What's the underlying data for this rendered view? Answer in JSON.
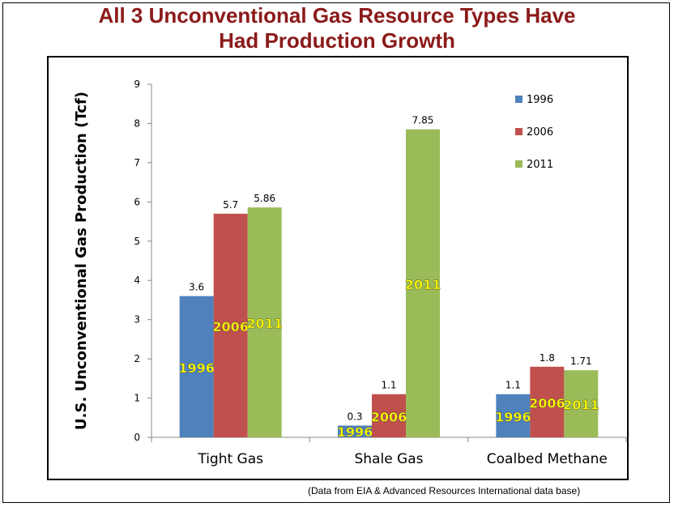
{
  "slide": {
    "title_line1": "All 3 Unconventional Gas Resource Types Have",
    "title_line2": "Had Production Growth",
    "source_note": "(Data from EIA & Advanced Resources International data base)"
  },
  "chart_data": {
    "type": "bar",
    "ylabel": "U.S. Unconventional Gas Production (Tcf)",
    "xlabel": "",
    "ylim": [
      0,
      9
    ],
    "yticks": [
      "0",
      "1",
      "2",
      "3",
      "4",
      "5",
      "6",
      "7",
      "8",
      "9"
    ],
    "grid": false,
    "legend": "top-right",
    "categories": [
      "Tight Gas",
      "Shale Gas",
      "Coalbed Methane"
    ],
    "series": [
      {
        "name": "1996",
        "color": "#4f81bd",
        "values": [
          3.6,
          0.3,
          1.1
        ],
        "labels": [
          "3.6",
          "0.3",
          "1.1"
        ]
      },
      {
        "name": "2006",
        "color": "#c0504d",
        "values": [
          5.7,
          1.1,
          1.8
        ],
        "labels": [
          "5.7",
          "1.1",
          "1.8"
        ]
      },
      {
        "name": "2011",
        "color": "#9bbb59",
        "values": [
          5.86,
          7.85,
          1.71
        ],
        "labels": [
          "5.86",
          "7.85",
          "1.71"
        ]
      }
    ],
    "bar_text_color": "#ffff00"
  }
}
